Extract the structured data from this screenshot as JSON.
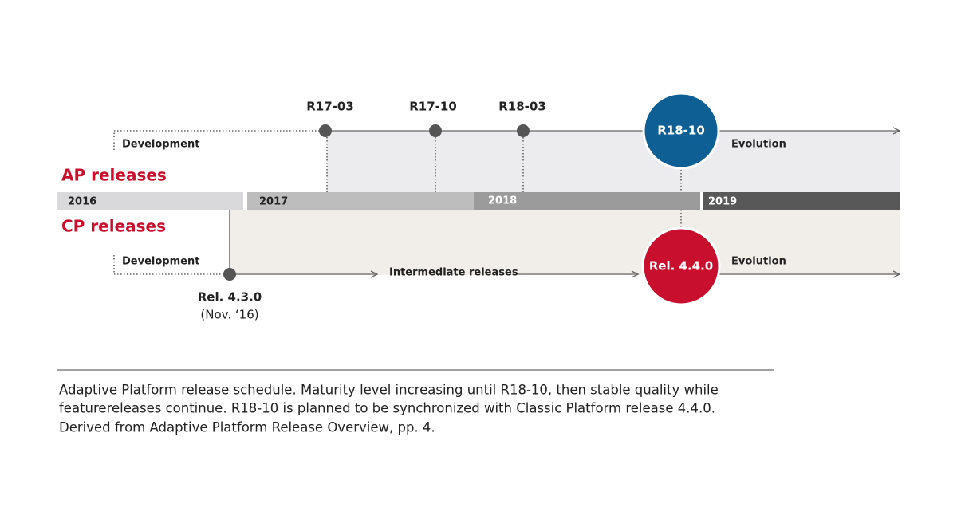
{
  "sections": {
    "ap": "AP releases",
    "cp": "CP releases"
  },
  "years": [
    "2016",
    "2017",
    "2018",
    "2019"
  ],
  "ap": {
    "development": "Development",
    "milestones": [
      "R17-03",
      "R17-10",
      "R18-03"
    ],
    "highlight": "R18-10",
    "evolution": "Evolution"
  },
  "cp": {
    "development": "Development",
    "start": "Rel. 4.3.0",
    "start_date": "(Nov. ‘16)",
    "intermediate": "Intermediate releases",
    "highlight": "Rel. 4.4.0",
    "evolution": "Evolution"
  },
  "caption": [
    "Adaptive Platform release schedule. Maturity level increasing until R18-10, then stable quality while",
    "featurereleases continue. R18-10 is planned to be synchronized with Classic Platform release 4.4.0.",
    "Derived from Adaptive Platform Release Overview, pp. 4."
  ]
}
